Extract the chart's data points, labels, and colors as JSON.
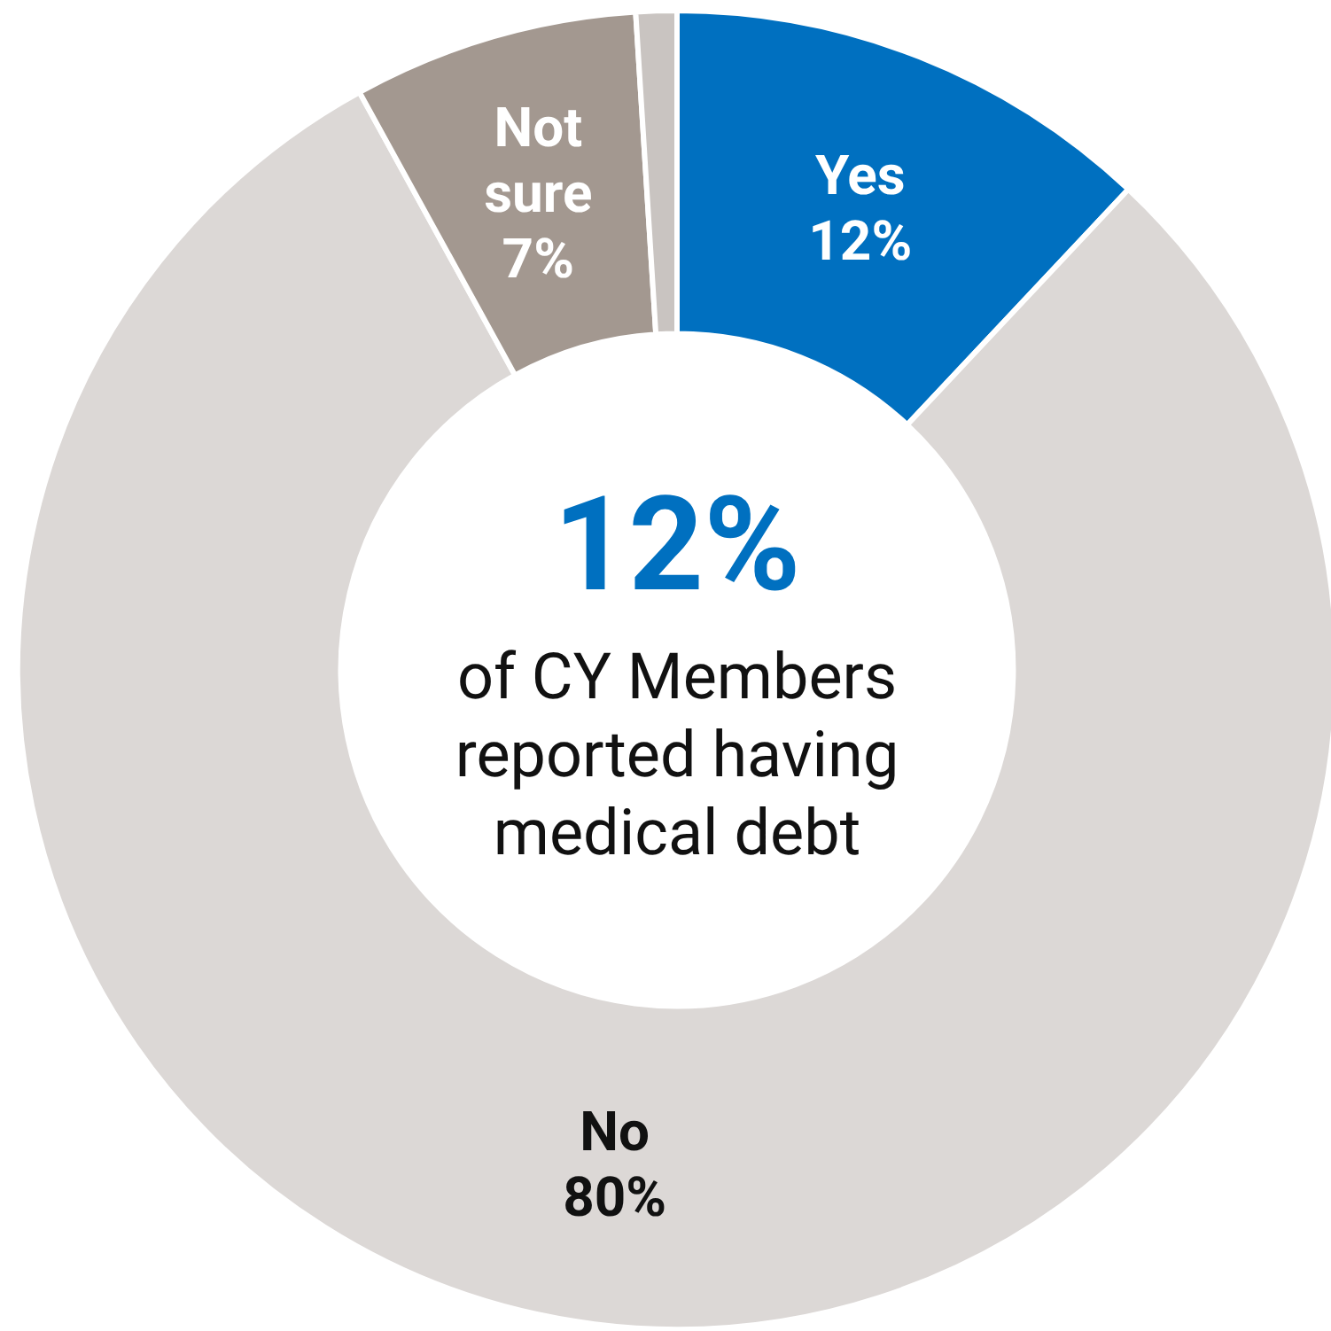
{
  "chart_data": {
    "type": "donut",
    "categories": [
      "Yes",
      "No",
      "Not sure",
      null
    ],
    "values": [
      12,
      80,
      7,
      1
    ],
    "value_labels": [
      "12%",
      "80%",
      "7%",
      null
    ],
    "colors": [
      "#0070c0",
      "#dcd8d6",
      "#a39890",
      "#c9c4c1"
    ],
    "annotations": [
      "12%",
      "of CY Members reported having medical debt"
    ]
  }
}
